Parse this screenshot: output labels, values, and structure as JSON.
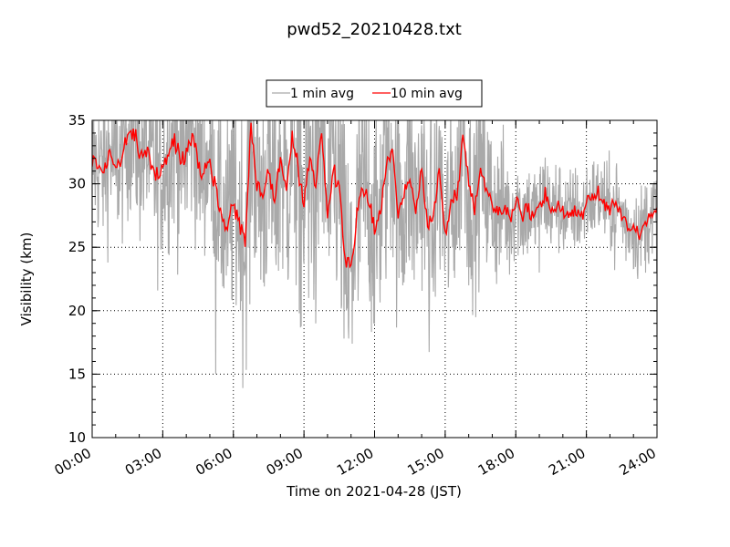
{
  "chart_data": {
    "type": "line",
    "title": "pwd52_20210428.txt",
    "xlabel": "Time on 2021-04-28 (JST)",
    "ylabel": "Visibility (km)",
    "xlim_hours": [
      0,
      24
    ],
    "ylim": [
      10,
      35
    ],
    "x_ticks": [
      "00:00",
      "03:00",
      "06:00",
      "09:00",
      "12:00",
      "15:00",
      "18:00",
      "21:00",
      "24:00"
    ],
    "y_ticks": [
      10,
      15,
      20,
      25,
      30,
      35
    ],
    "grid": true,
    "legend_position": "top-center",
    "series": [
      {
        "name": "1 min avg",
        "color": "#a9a9a9"
      },
      {
        "name": "10 min avg",
        "color": "#ff0000"
      }
    ],
    "ten_min_avg_points": [
      [
        0.0,
        31.8
      ],
      [
        0.25,
        31.5
      ],
      [
        0.5,
        31.0
      ],
      [
        0.75,
        32.5
      ],
      [
        1.0,
        31.2
      ],
      [
        1.25,
        32.0
      ],
      [
        1.5,
        33.8
      ],
      [
        1.75,
        34.0
      ],
      [
        2.0,
        32.0
      ],
      [
        2.25,
        32.8
      ],
      [
        2.5,
        31.8
      ],
      [
        2.75,
        30.5
      ],
      [
        3.0,
        31.2
      ],
      [
        3.25,
        32.3
      ],
      [
        3.5,
        33.5
      ],
      [
        3.75,
        31.8
      ],
      [
        4.0,
        32.5
      ],
      [
        4.25,
        34.2
      ],
      [
        4.5,
        31.7
      ],
      [
        4.75,
        31.0
      ],
      [
        5.0,
        32.0
      ],
      [
        5.25,
        29.5
      ],
      [
        5.5,
        27.5
      ],
      [
        5.75,
        26.5
      ],
      [
        6.0,
        28.8
      ],
      [
        6.25,
        27.0
      ],
      [
        6.5,
        25.2
      ],
      [
        6.75,
        34.8
      ],
      [
        7.0,
        30.0
      ],
      [
        7.25,
        29.2
      ],
      [
        7.5,
        31.0
      ],
      [
        7.75,
        28.5
      ],
      [
        8.0,
        32.3
      ],
      [
        8.25,
        29.5
      ],
      [
        8.5,
        33.5
      ],
      [
        8.75,
        31.0
      ],
      [
        9.0,
        28.0
      ],
      [
        9.25,
        32.2
      ],
      [
        9.5,
        30.0
      ],
      [
        9.75,
        34.5
      ],
      [
        10.0,
        27.5
      ],
      [
        10.25,
        31.0
      ],
      [
        10.5,
        29.5
      ],
      [
        10.75,
        24.0
      ],
      [
        11.0,
        23.6
      ],
      [
        11.25,
        27.5
      ],
      [
        11.5,
        29.5
      ],
      [
        11.75,
        28.5
      ],
      [
        12.0,
        26.5
      ],
      [
        12.25,
        28.0
      ],
      [
        12.5,
        31.5
      ],
      [
        12.75,
        32.6
      ],
      [
        13.0,
        28.0
      ],
      [
        13.25,
        29.0
      ],
      [
        13.5,
        30.5
      ],
      [
        13.75,
        27.8
      ],
      [
        14.0,
        31.0
      ],
      [
        14.25,
        26.5
      ],
      [
        14.5,
        28.0
      ],
      [
        14.75,
        30.8
      ],
      [
        15.0,
        26.0
      ],
      [
        15.25,
        28.5
      ],
      [
        15.5,
        29.0
      ],
      [
        15.75,
        34.5
      ],
      [
        16.0,
        29.8
      ],
      [
        16.25,
        28.0
      ],
      [
        16.5,
        31.5
      ],
      [
        16.75,
        29.5
      ],
      [
        17.0,
        28.5
      ],
      [
        17.25,
        27.8
      ],
      [
        17.5,
        28.5
      ],
      [
        17.75,
        27.0
      ],
      [
        18.0,
        28.8
      ],
      [
        18.25,
        27.5
      ],
      [
        18.5,
        28.0
      ],
      [
        18.75,
        27.5
      ],
      [
        19.0,
        28.5
      ],
      [
        19.25,
        29.2
      ],
      [
        19.5,
        27.8
      ],
      [
        19.75,
        28.5
      ],
      [
        20.0,
        27.8
      ],
      [
        20.25,
        27.5
      ],
      [
        20.5,
        28.0
      ],
      [
        20.75,
        27.5
      ],
      [
        21.0,
        28.5
      ],
      [
        21.25,
        28.8
      ],
      [
        21.5,
        29.0
      ],
      [
        21.75,
        28.5
      ],
      [
        22.0,
        28.0
      ],
      [
        22.25,
        28.8
      ],
      [
        22.5,
        27.5
      ],
      [
        22.75,
        26.8
      ],
      [
        23.0,
        26.5
      ],
      [
        23.25,
        26.0
      ],
      [
        23.5,
        27.0
      ],
      [
        23.75,
        27.5
      ],
      [
        24.0,
        28.0
      ]
    ],
    "one_min_spread_km": [
      [
        0,
        3.5
      ],
      [
        2,
        4.0
      ],
      [
        4,
        4.5
      ],
      [
        5,
        3.5
      ],
      [
        6,
        5.5
      ],
      [
        9,
        6.5
      ],
      [
        12,
        5.5
      ],
      [
        15,
        5.0
      ],
      [
        17,
        4.0
      ],
      [
        18,
        2.5
      ],
      [
        21,
        2.0
      ],
      [
        24,
        2.2
      ]
    ],
    "one_min_dips": [
      [
        5.25,
        15.0
      ],
      [
        6.3,
        20.0
      ],
      [
        6.7,
        20.5
      ],
      [
        8.8,
        19.8
      ],
      [
        9.2,
        21.0
      ],
      [
        9.5,
        19.0
      ],
      [
        10.7,
        17.8
      ],
      [
        10.9,
        17.8
      ],
      [
        11.05,
        17.4
      ],
      [
        11.3,
        20.8
      ],
      [
        12.1,
        22.5
      ],
      [
        13.2,
        22.0
      ],
      [
        14.5,
        21.5
      ],
      [
        16.0,
        22.0
      ],
      [
        19.0,
        23.0
      ],
      [
        22.2,
        23.2
      ],
      [
        23.8,
        24.5
      ]
    ]
  }
}
